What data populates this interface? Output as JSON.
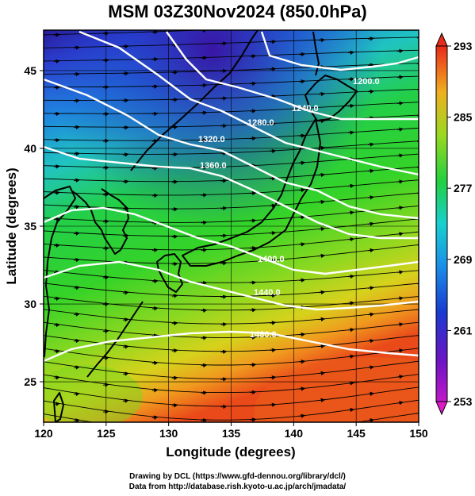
{
  "title": "MSM 03Z30Nov2024 (850.0hPa)",
  "axes": {
    "xlabel": "Longitude (degrees)",
    "ylabel": "Latitude  (degrees)",
    "x_ticks": [
      "120",
      "125",
      "130",
      "135",
      "140",
      "145",
      "150"
    ],
    "y_ticks": [
      "25",
      "30",
      "35",
      "40",
      "45"
    ],
    "xlim": [
      120,
      150
    ],
    "ylim": [
      22.4,
      47.6
    ]
  },
  "colorbar": {
    "labels": [
      "293",
      "285",
      "277",
      "269",
      "261",
      "253"
    ],
    "range": [
      253,
      293
    ],
    "units_hint": "temperature (K)"
  },
  "contours": {
    "labels": [
      "1200.0",
      "1240.0",
      "1280.0",
      "1320.0",
      "1360.0",
      "1400.0",
      "1440.0",
      "1480.0"
    ]
  },
  "credits": {
    "line1": "Drawing by DCL (https://www.gfd-dennou.org/library/dcl/)",
    "line2": "Data from http://database.rish.kyoto-u.ac.jp/arch/jmadata/"
  },
  "colors": {
    "warm": "#e63a1e",
    "mid": "#22d022",
    "cold": "#1a2aa8",
    "contour": "#ffffff",
    "coast": "#000000"
  }
}
